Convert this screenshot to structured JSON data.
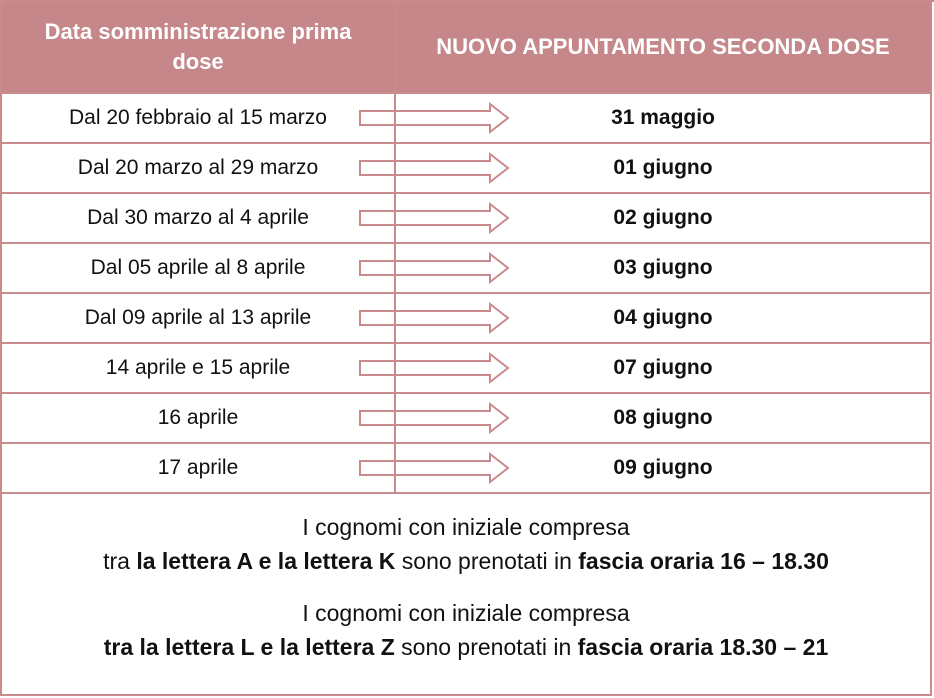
{
  "header": {
    "columns": [
      "Data somministrazione prima dose",
      "NUOVO APPUNTAMENTO SECONDA DOSE"
    ]
  },
  "table": {
    "rows": [
      [
        "Dal 20 febbraio al 15 marzo",
        "31 maggio"
      ],
      [
        "Dal 20 marzo al 29 marzo",
        "01 giugno"
      ],
      [
        "Dal 30 marzo al 4 aprile",
        "02 giugno"
      ],
      [
        "Dal 05 aprile al 8 aprile",
        "03 giugno"
      ],
      [
        "Dal 09 aprile al 13 aprile",
        "04 giugno"
      ],
      [
        "14 aprile e 15 aprile",
        "07 giugno"
      ],
      [
        "16 aprile",
        "08 giugno"
      ],
      [
        "17 aprile",
        "09 giugno"
      ]
    ]
  },
  "notes": [
    [
      [
        {
          "text": "I cognomi con iniziale compresa",
          "bold": false
        }
      ],
      [
        {
          "text": "tra ",
          "bold": false
        },
        {
          "text": "la lettera A e la lettera K",
          "bold": true
        },
        {
          "text": " sono prenotati in ",
          "bold": false
        },
        {
          "text": "fascia oraria 16 – 18.30",
          "bold": true
        }
      ]
    ],
    [
      [
        {
          "text": "I cognomi con iniziale compresa",
          "bold": false
        }
      ],
      [
        {
          "text": "tra la lettera L e la lettera Z",
          "bold": true
        },
        {
          "text": " sono prenotati in ",
          "bold": false
        },
        {
          "text": "fascia oraria 18.30 – 21",
          "bold": true
        }
      ]
    ]
  ]
}
